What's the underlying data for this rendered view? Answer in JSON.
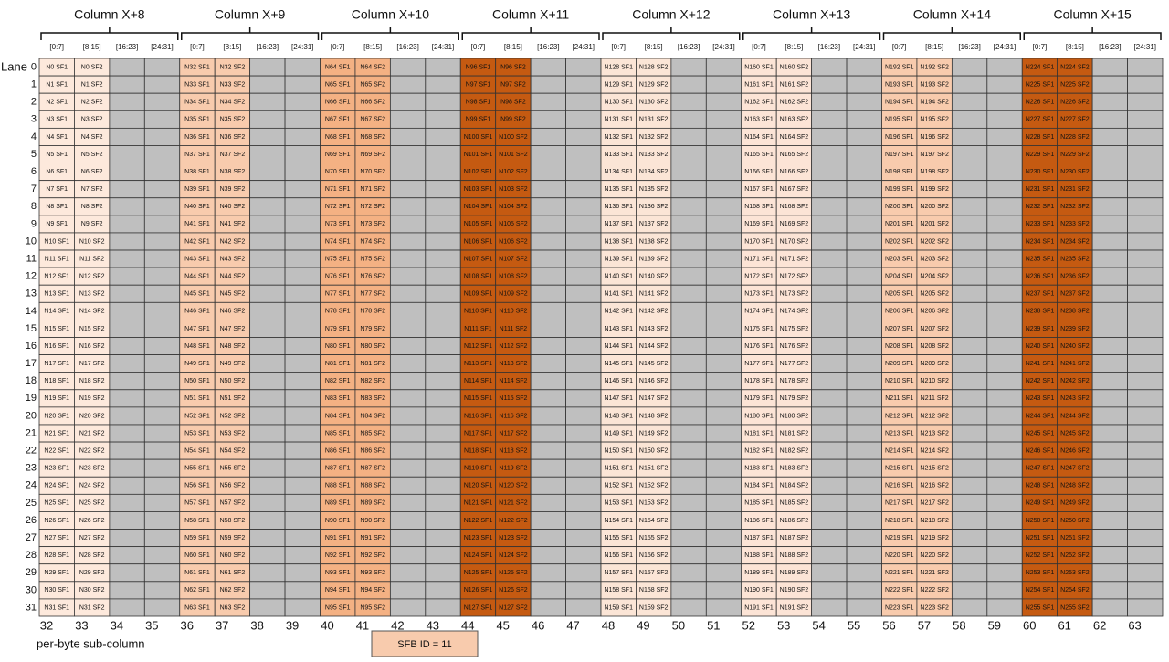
{
  "lane_label": "Lane",
  "lanes": [
    0,
    1,
    2,
    3,
    4,
    5,
    6,
    7,
    8,
    9,
    10,
    11,
    12,
    13,
    14,
    15,
    16,
    17,
    18,
    19,
    20,
    21,
    22,
    23,
    24,
    25,
    26,
    27,
    28,
    29,
    30,
    31
  ],
  "footer_label": "per-byte sub-column",
  "legend_label": "SFB ID = 11",
  "legend_color": "#f8cbad",
  "empty_color": "#bfbfbf",
  "sub_column_numbers": [
    32,
    33,
    34,
    35,
    36,
    37,
    38,
    39,
    40,
    41,
    42,
    43,
    44,
    45,
    46,
    47,
    48,
    49,
    50,
    51,
    52,
    53,
    54,
    55,
    56,
    57,
    58,
    59,
    60,
    61,
    62,
    63
  ],
  "groups": [
    {
      "title": "Column X+8",
      "color": "#fde9dc",
      "sub_headers": [
        "[0:7]",
        "[8:15]",
        "[16:23]",
        "[24:31]"
      ],
      "rows": [
        [
          "N0 SF1",
          "N0 SF2"
        ],
        [
          "N1 SF1",
          "N1 SF2"
        ],
        [
          "N2 SF1",
          "N2 SF2"
        ],
        [
          "N3 SF1",
          "N3 SF2"
        ],
        [
          "N4 SF1",
          "N4 SF2"
        ],
        [
          "N5 SF1",
          "N5 SF2"
        ],
        [
          "N6 SF1",
          "N6 SF2"
        ],
        [
          "N7 SF1",
          "N7 SF2"
        ],
        [
          "N8 SF1",
          "N8 SF2"
        ],
        [
          "N9 SF1",
          "N9 SF2"
        ],
        [
          "N10 SF1",
          "N10 SF2"
        ],
        [
          "N11 SF1",
          "N11 SF2"
        ],
        [
          "N12 SF1",
          "N12 SF2"
        ],
        [
          "N13 SF1",
          "N13 SF2"
        ],
        [
          "N14 SF1",
          "N14 SF2"
        ],
        [
          "N15 SF1",
          "N15 SF2"
        ],
        [
          "N16 SF1",
          "N16 SF2"
        ],
        [
          "N17 SF1",
          "N17 SF2"
        ],
        [
          "N18 SF1",
          "N18 SF2"
        ],
        [
          "N19 SF1",
          "N19 SF2"
        ],
        [
          "N20 SF1",
          "N20 SF2"
        ],
        [
          "N21 SF1",
          "N21 SF2"
        ],
        [
          "N22 SF1",
          "N22 SF2"
        ],
        [
          "N23 SF1",
          "N23 SF2"
        ],
        [
          "N24 SF1",
          "N24 SF2"
        ],
        [
          "N25 SF1",
          "N25 SF2"
        ],
        [
          "N26 SF1",
          "N26 SF2"
        ],
        [
          "N27 SF1",
          "N27 SF2"
        ],
        [
          "N28 SF1",
          "N28 SF2"
        ],
        [
          "N29 SF1",
          "N29 SF2"
        ],
        [
          "N30 SF1",
          "N30 SF2"
        ],
        [
          "N31 SF1",
          "N31 SF2"
        ]
      ]
    },
    {
      "title": "Column X+9",
      "color": "#f8cbad",
      "sub_headers": [
        "[0:7]",
        "[8:15]",
        "[16:23]",
        "[24:31]"
      ],
      "rows": [
        [
          "N32 SF1",
          "N32 SF2"
        ],
        [
          "N33 SF1",
          "N33 SF2"
        ],
        [
          "N34 SF1",
          "N34 SF2"
        ],
        [
          "N35 SF1",
          "N35 SF2"
        ],
        [
          "N36 SF1",
          "N36 SF2"
        ],
        [
          "N37 SF1",
          "N37 SF2"
        ],
        [
          "N38 SF1",
          "N38 SF2"
        ],
        [
          "N39 SF1",
          "N39 SF2"
        ],
        [
          "N40 SF1",
          "N40 SF2"
        ],
        [
          "N41 SF1",
          "N41 SF2"
        ],
        [
          "N42 SF1",
          "N42 SF2"
        ],
        [
          "N43 SF1",
          "N43 SF2"
        ],
        [
          "N44 SF1",
          "N44 SF2"
        ],
        [
          "N45 SF1",
          "N45 SF2"
        ],
        [
          "N46 SF1",
          "N46 SF2"
        ],
        [
          "N47 SF1",
          "N47 SF2"
        ],
        [
          "N48 SF1",
          "N48 SF2"
        ],
        [
          "N49 SF1",
          "N49 SF2"
        ],
        [
          "N50 SF1",
          "N50 SF2"
        ],
        [
          "N51 SF1",
          "N51 SF2"
        ],
        [
          "N52 SF1",
          "N52 SF2"
        ],
        [
          "N53 SF1",
          "N53 SF2"
        ],
        [
          "N54 SF1",
          "N54 SF2"
        ],
        [
          "N55 SF1",
          "N55 SF2"
        ],
        [
          "N56 SF1",
          "N56 SF2"
        ],
        [
          "N57 SF1",
          "N57 SF2"
        ],
        [
          "N58 SF1",
          "N58 SF2"
        ],
        [
          "N59 SF1",
          "N59 SF2"
        ],
        [
          "N60 SF1",
          "N60 SF2"
        ],
        [
          "N61 SF1",
          "N61 SF2"
        ],
        [
          "N62 SF1",
          "N62 SF2"
        ],
        [
          "N63 SF1",
          "N63 SF2"
        ]
      ]
    },
    {
      "title": "Column X+10",
      "color": "#f4b183",
      "sub_headers": [
        "[0:7]",
        "[8:15]",
        "[16:23]",
        "[24:31]"
      ],
      "rows": [
        [
          "N64 SF1",
          "N64 SF2"
        ],
        [
          "N65 SF1",
          "N65 SF2"
        ],
        [
          "N66 SF1",
          "N66 SF2"
        ],
        [
          "N67 SF1",
          "N67 SF2"
        ],
        [
          "N68 SF1",
          "N68 SF2"
        ],
        [
          "N69 SF1",
          "N69 SF2"
        ],
        [
          "N70 SF1",
          "N70 SF2"
        ],
        [
          "N71 SF1",
          "N71 SF2"
        ],
        [
          "N72 SF1",
          "N72 SF2"
        ],
        [
          "N73 SF1",
          "N73 SF2"
        ],
        [
          "N74 SF1",
          "N74 SF2"
        ],
        [
          "N75 SF1",
          "N75 SF2"
        ],
        [
          "N76 SF1",
          "N76 SF2"
        ],
        [
          "N77 SF1",
          "N77 SF2"
        ],
        [
          "N78 SF1",
          "N78 SF2"
        ],
        [
          "N79 SF1",
          "N79 SF2"
        ],
        [
          "N80 SF1",
          "N80 SF2"
        ],
        [
          "N81 SF1",
          "N81 SF2"
        ],
        [
          "N82 SF1",
          "N82 SF2"
        ],
        [
          "N83 SF1",
          "N83 SF2"
        ],
        [
          "N84 SF1",
          "N84 SF2"
        ],
        [
          "N85 SF1",
          "N85 SF2"
        ],
        [
          "N86 SF1",
          "N86 SF2"
        ],
        [
          "N87 SF1",
          "N87 SF2"
        ],
        [
          "N88 SF1",
          "N88 SF2"
        ],
        [
          "N89 SF1",
          "N89 SF2"
        ],
        [
          "N90 SF1",
          "N90 SF2"
        ],
        [
          "N91 SF1",
          "N91 SF2"
        ],
        [
          "N92 SF1",
          "N92 SF2"
        ],
        [
          "N93 SF1",
          "N93 SF2"
        ],
        [
          "N94 SF1",
          "N94 SF2"
        ],
        [
          "N95 SF1",
          "N95 SF2"
        ]
      ]
    },
    {
      "title": "Column X+11",
      "color": "#c55a11",
      "sub_headers": [
        "[0:7]",
        "[8:15]",
        "[16:23]",
        "[24:31]"
      ],
      "rows": [
        [
          "N96 SF1",
          "N96 SF2"
        ],
        [
          "N97 SF1",
          "N97 SF2"
        ],
        [
          "N98 SF1",
          "N98 SF2"
        ],
        [
          "N99 SF1",
          "N99 SF2"
        ],
        [
          "N100 SF1",
          "N100 SF2"
        ],
        [
          "N101 SF1",
          "N101 SF2"
        ],
        [
          "N102 SF1",
          "N102 SF2"
        ],
        [
          "N103 SF1",
          "N103 SF2"
        ],
        [
          "N104 SF1",
          "N104 SF2"
        ],
        [
          "N105 SF1",
          "N105 SF2"
        ],
        [
          "N106 SF1",
          "N106 SF2"
        ],
        [
          "N107 SF1",
          "N107 SF2"
        ],
        [
          "N108 SF1",
          "N108 SF2"
        ],
        [
          "N109 SF1",
          "N109 SF2"
        ],
        [
          "N110 SF1",
          "N110 SF2"
        ],
        [
          "N111 SF1",
          "N111 SF2"
        ],
        [
          "N112 SF1",
          "N112 SF2"
        ],
        [
          "N113 SF1",
          "N113 SF2"
        ],
        [
          "N114 SF1",
          "N114 SF2"
        ],
        [
          "N115 SF1",
          "N115 SF2"
        ],
        [
          "N116 SF1",
          "N116 SF2"
        ],
        [
          "N117 SF1",
          "N117 SF2"
        ],
        [
          "N118 SF1",
          "N118 SF2"
        ],
        [
          "N119 SF1",
          "N119 SF2"
        ],
        [
          "N120 SF1",
          "N120 SF2"
        ],
        [
          "N121 SF1",
          "N121 SF2"
        ],
        [
          "N122 SF1",
          "N122 SF2"
        ],
        [
          "N123 SF1",
          "N123 SF2"
        ],
        [
          "N124 SF1",
          "N124 SF2"
        ],
        [
          "N125 SF1",
          "N125 SF2"
        ],
        [
          "N126 SF1",
          "N126 SF2"
        ],
        [
          "N127 SF1",
          "N127 SF2"
        ]
      ]
    },
    {
      "title": "Column X+12",
      "color": "#fbe5d6",
      "sub_headers": [
        "[0:7]",
        "[8:15]",
        "[16:23]",
        "[24:31]"
      ],
      "rows": [
        [
          "N128 SF1",
          "N128 SF2"
        ],
        [
          "N129 SF1",
          "N129 SF2"
        ],
        [
          "N130 SF1",
          "N130 SF2"
        ],
        [
          "N131 SF1",
          "N131 SF2"
        ],
        [
          "N132 SF1",
          "N132 SF2"
        ],
        [
          "N133 SF1",
          "N133 SF2"
        ],
        [
          "N134 SF1",
          "N134 SF2"
        ],
        [
          "N135 SF1",
          "N135 SF2"
        ],
        [
          "N136 SF1",
          "N136 SF2"
        ],
        [
          "N137 SF1",
          "N137 SF2"
        ],
        [
          "N138 SF1",
          "N138 SF2"
        ],
        [
          "N139 SF1",
          "N139 SF2"
        ],
        [
          "N140 SF1",
          "N140 SF2"
        ],
        [
          "N141 SF1",
          "N141 SF2"
        ],
        [
          "N142 SF1",
          "N142 SF2"
        ],
        [
          "N143 SF1",
          "N143 SF2"
        ],
        [
          "N144 SF1",
          "N144 SF2"
        ],
        [
          "N145 SF1",
          "N145 SF2"
        ],
        [
          "N146 SF1",
          "N146 SF2"
        ],
        [
          "N147 SF1",
          "N147 SF2"
        ],
        [
          "N148 SF1",
          "N148 SF2"
        ],
        [
          "N149 SF1",
          "N149 SF2"
        ],
        [
          "N150 SF1",
          "N150 SF2"
        ],
        [
          "N151 SF1",
          "N151 SF2"
        ],
        [
          "N152 SF1",
          "N152 SF2"
        ],
        [
          "N153 SF1",
          "N153 SF2"
        ],
        [
          "N154 SF1",
          "N154 SF2"
        ],
        [
          "N155 SF1",
          "N155 SF2"
        ],
        [
          "N156 SF1",
          "N156 SF2"
        ],
        [
          "N157 SF1",
          "N157 SF2"
        ],
        [
          "N158 SF1",
          "N158 SF2"
        ],
        [
          "N159 SF1",
          "N159 SF2"
        ]
      ]
    },
    {
      "title": "Column X+13",
      "color": "#fce4d6",
      "sub_headers": [
        "[0:7]",
        "[8:15]",
        "[16:23]",
        "[24:31]"
      ],
      "rows": [
        [
          "N160 SF1",
          "N160 SF2"
        ],
        [
          "N161 SF1",
          "N161 SF2"
        ],
        [
          "N162 SF1",
          "N162 SF2"
        ],
        [
          "N163 SF1",
          "N163 SF2"
        ],
        [
          "N164 SF1",
          "N164 SF2"
        ],
        [
          "N165 SF1",
          "N165 SF2"
        ],
        [
          "N166 SF1",
          "N166 SF2"
        ],
        [
          "N167 SF1",
          "N167 SF2"
        ],
        [
          "N168 SF1",
          "N168 SF2"
        ],
        [
          "N169 SF1",
          "N169 SF2"
        ],
        [
          "N170 SF1",
          "N170 SF2"
        ],
        [
          "N171 SF1",
          "N171 SF2"
        ],
        [
          "N172 SF1",
          "N172 SF2"
        ],
        [
          "N173 SF1",
          "N173 SF2"
        ],
        [
          "N174 SF1",
          "N174 SF2"
        ],
        [
          "N175 SF1",
          "N175 SF2"
        ],
        [
          "N176 SF1",
          "N176 SF2"
        ],
        [
          "N177 SF1",
          "N177 SF2"
        ],
        [
          "N178 SF1",
          "N178 SF2"
        ],
        [
          "N179 SF1",
          "N179 SF2"
        ],
        [
          "N180 SF1",
          "N180 SF2"
        ],
        [
          "N181 SF1",
          "N181 SF2"
        ],
        [
          "N182 SF1",
          "N182 SF2"
        ],
        [
          "N183 SF1",
          "N183 SF2"
        ],
        [
          "N184 SF1",
          "N184 SF2"
        ],
        [
          "N185 SF1",
          "N185 SF2"
        ],
        [
          "N186 SF1",
          "N186 SF2"
        ],
        [
          "N187 SF1",
          "N187 SF2"
        ],
        [
          "N188 SF1",
          "N188 SF2"
        ],
        [
          "N189 SF1",
          "N189 SF2"
        ],
        [
          "N190 SF1",
          "N190 SF2"
        ],
        [
          "N191 SF1",
          "N191 SF2"
        ]
      ]
    },
    {
      "title": "Column X+14",
      "color": "#f8cbad",
      "sub_headers": [
        "[0:7]",
        "[8:15]",
        "[16:23]",
        "[24:31]"
      ],
      "rows": [
        [
          "N192 SF1",
          "N192 SF2"
        ],
        [
          "N193 SF1",
          "N193 SF2"
        ],
        [
          "N194 SF1",
          "N194 SF2"
        ],
        [
          "N195 SF1",
          "N195 SF2"
        ],
        [
          "N196 SF1",
          "N196 SF2"
        ],
        [
          "N197 SF1",
          "N197 SF2"
        ],
        [
          "N198 SF1",
          "N198 SF2"
        ],
        [
          "N199 SF1",
          "N199 SF2"
        ],
        [
          "N200 SF1",
          "N200 SF2"
        ],
        [
          "N201 SF1",
          "N201 SF2"
        ],
        [
          "N202 SF1",
          "N202 SF2"
        ],
        [
          "N203 SF1",
          "N203 SF2"
        ],
        [
          "N204 SF1",
          "N204 SF2"
        ],
        [
          "N205 SF1",
          "N205 SF2"
        ],
        [
          "N206 SF1",
          "N206 SF2"
        ],
        [
          "N207 SF1",
          "N207 SF2"
        ],
        [
          "N208 SF1",
          "N208 SF2"
        ],
        [
          "N209 SF1",
          "N209 SF2"
        ],
        [
          "N210 SF1",
          "N210 SF2"
        ],
        [
          "N211 SF1",
          "N211 SF2"
        ],
        [
          "N212 SF1",
          "N212 SF2"
        ],
        [
          "N213 SF1",
          "N213 SF2"
        ],
        [
          "N214 SF1",
          "N214 SF2"
        ],
        [
          "N215 SF1",
          "N215 SF2"
        ],
        [
          "N216 SF1",
          "N216 SF2"
        ],
        [
          "N217 SF1",
          "N217 SF2"
        ],
        [
          "N218 SF1",
          "N218 SF2"
        ],
        [
          "N219 SF1",
          "N219 SF2"
        ],
        [
          "N220 SF1",
          "N220 SF2"
        ],
        [
          "N221 SF1",
          "N221 SF2"
        ],
        [
          "N222 SF1",
          "N222 SF2"
        ],
        [
          "N223 SF1",
          "N223 SF2"
        ]
      ]
    },
    {
      "title": "Column X+15",
      "color": "#c55a11",
      "sub_headers": [
        "[0:7]",
        "[8:15]",
        "[16:23]",
        "[24:31]"
      ],
      "rows": [
        [
          "N224 SF1",
          "N224 SF2"
        ],
        [
          "N225 SF1",
          "N225 SF2"
        ],
        [
          "N226 SF1",
          "N226 SF2"
        ],
        [
          "N227 SF1",
          "N227 SF2"
        ],
        [
          "N228 SF1",
          "N228 SF2"
        ],
        [
          "N229 SF1",
          "N229 SF2"
        ],
        [
          "N230 SF1",
          "N230 SF2"
        ],
        [
          "N231 SF1",
          "N231 SF2"
        ],
        [
          "N232 SF1",
          "N232 SF2"
        ],
        [
          "N233 SF1",
          "N233 SF2"
        ],
        [
          "N234 SF1",
          "N234 SF2"
        ],
        [
          "N235 SF1",
          "N235 SF2"
        ],
        [
          "N236 SF1",
          "N236 SF2"
        ],
        [
          "N237 SF1",
          "N237 SF2"
        ],
        [
          "N238 SF1",
          "N238 SF2"
        ],
        [
          "N239 SF1",
          "N239 SF2"
        ],
        [
          "N240 SF1",
          "N240 SF2"
        ],
        [
          "N241 SF1",
          "N241 SF2"
        ],
        [
          "N242 SF1",
          "N242 SF2"
        ],
        [
          "N243 SF1",
          "N243 SF2"
        ],
        [
          "N244 SF1",
          "N244 SF2"
        ],
        [
          "N245 SF1",
          "N245 SF2"
        ],
        [
          "N246 SF1",
          "N246 SF2"
        ],
        [
          "N247 SF1",
          "N247 SF2"
        ],
        [
          "N248 SF1",
          "N248 SF2"
        ],
        [
          "N249 SF1",
          "N249 SF2"
        ],
        [
          "N250 SF1",
          "N250 SF2"
        ],
        [
          "N251 SF1",
          "N251 SF2"
        ],
        [
          "N252 SF1",
          "N252 SF2"
        ],
        [
          "N253 SF1",
          "N253 SF2"
        ],
        [
          "N254 SF1",
          "N254 SF2"
        ],
        [
          "N255 SF1",
          "N255 SF2"
        ]
      ]
    }
  ]
}
